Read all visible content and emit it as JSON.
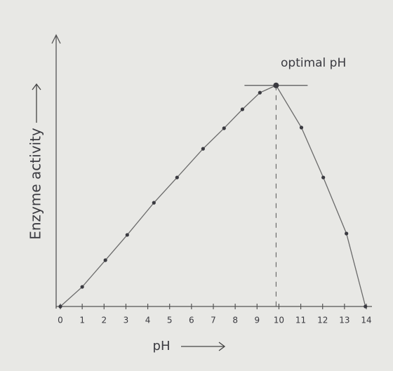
{
  "chart_data": {
    "type": "line",
    "y_label": "Enzyme activity",
    "x_label": "pH",
    "annotation": "optimal pH",
    "x": [
      0,
      1.0,
      2.06,
      3.06,
      4.28,
      5.34,
      6.53,
      7.49,
      8.33,
      9.13,
      9.87,
      11.03,
      12.03,
      13.09,
      13.96
    ],
    "series": [
      {
        "color": "#6a6a6a",
        "values": [
          0,
          8.6,
          20.3,
          31.4,
          45.5,
          56.6,
          69.2,
          78.2,
          86.5,
          93.8,
          97,
          78.5,
          56.6,
          32,
          0
        ]
      }
    ],
    "xlim": [
      0,
      14
    ],
    "xticks": [
      0,
      1,
      2,
      3,
      4,
      5,
      6,
      7,
      8,
      9,
      10,
      11,
      12,
      13,
      14
    ],
    "ylim": [
      0,
      120
    ]
  }
}
